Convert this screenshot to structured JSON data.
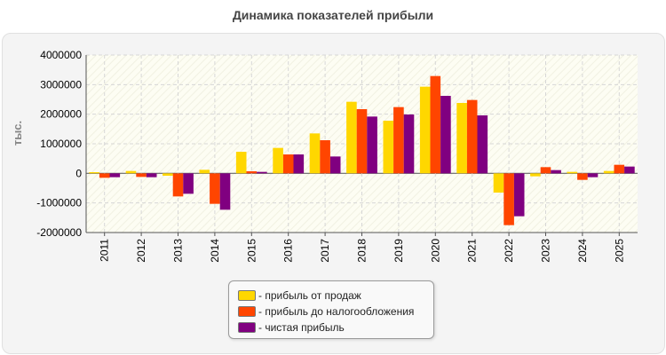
{
  "chart_data": {
    "type": "bar",
    "title": "Динамика показателей прибыли",
    "ylabel": "тыс.",
    "xlabel": "",
    "categories": [
      "2011",
      "2012",
      "2013",
      "2014",
      "2015",
      "2016",
      "2017",
      "2018",
      "2019",
      "2020",
      "2021",
      "2022",
      "2023",
      "2024",
      "2025"
    ],
    "series": [
      {
        "name": "прибыль от продаж",
        "color": "#FFD700",
        "values": [
          40000,
          80000,
          -80000,
          120000,
          730000,
          860000,
          1350000,
          2420000,
          1780000,
          2930000,
          2380000,
          -650000,
          -100000,
          50000,
          80000
        ]
      },
      {
        "name": "прибыль до налогообложения",
        "color": "#FF4500",
        "values": [
          -150000,
          -120000,
          -780000,
          -1030000,
          70000,
          640000,
          1120000,
          2170000,
          2240000,
          3290000,
          2480000,
          -1750000,
          210000,
          -220000,
          290000
        ]
      },
      {
        "name": "чистая прибыль",
        "color": "#800080",
        "values": [
          -130000,
          -130000,
          -690000,
          -1230000,
          50000,
          640000,
          570000,
          1920000,
          1990000,
          2620000,
          1960000,
          -1450000,
          110000,
          -130000,
          230000
        ]
      }
    ],
    "ylim": [
      -2000000,
      4000000
    ],
    "yticks": [
      4000000,
      3000000,
      2000000,
      1000000,
      0,
      -1000000,
      -2000000
    ],
    "ytick_labels": [
      "4000000",
      "3000000",
      "2000000",
      "1000000",
      "0",
      "-1000000",
      "-2000000"
    ],
    "grid": true,
    "legend_position": "bottom"
  },
  "legend": {
    "prefix": "- "
  }
}
